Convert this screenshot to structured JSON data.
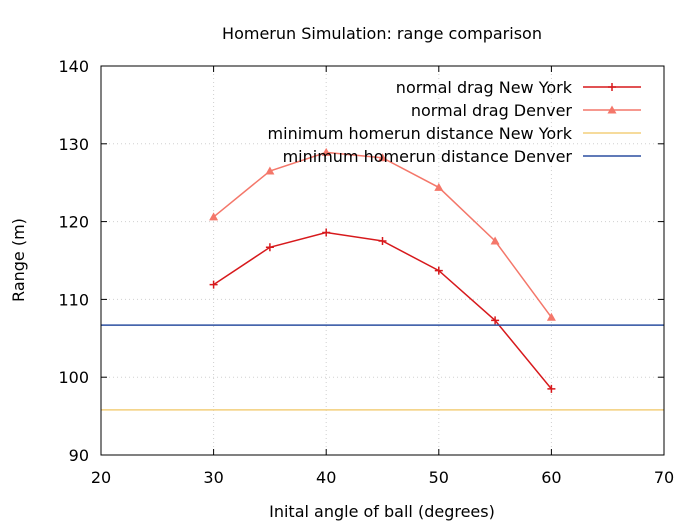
{
  "chart_data": {
    "type": "line",
    "title": "Homerun Simulation: range comparison",
    "xlabel": "Inital angle of ball (degrees)",
    "ylabel": "Range (m)",
    "xlim": [
      20,
      70
    ],
    "ylim": [
      90,
      140
    ],
    "xticks": [
      20,
      30,
      40,
      50,
      60,
      70
    ],
    "yticks": [
      90,
      100,
      110,
      120,
      130,
      140
    ],
    "grid": true,
    "legend_position": "top-right",
    "series": [
      {
        "name": "normal drag New York",
        "kind": "line-points",
        "marker": "plus",
        "color": "#d7191c",
        "x": [
          30,
          35,
          40,
          45,
          50,
          55,
          60
        ],
        "y": [
          111.9,
          116.7,
          118.6,
          117.5,
          113.7,
          107.3,
          98.5
        ]
      },
      {
        "name": "normal drag Denver",
        "kind": "line-points",
        "marker": "triangle",
        "color": "#f4776a",
        "x": [
          30,
          35,
          40,
          45,
          50,
          55,
          60
        ],
        "y": [
          120.6,
          126.5,
          128.9,
          128.2,
          124.4,
          117.5,
          107.7
        ]
      },
      {
        "name": "minimum homerun distance New York",
        "kind": "hline",
        "color": "#f3cf7c",
        "y": 95.8
      },
      {
        "name": "minimum homerun distance Denver",
        "kind": "hline",
        "color": "#2b4fa0",
        "y": 106.7
      }
    ]
  }
}
